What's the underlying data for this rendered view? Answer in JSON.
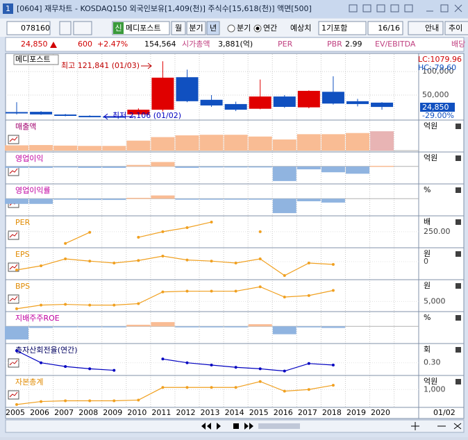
{
  "window": {
    "number": "1",
    "title": "[0604] 재무차트 - KOSDAQ150 외국인보유[1,409(천)] 주식수[15,618(천)] 액면[500]"
  },
  "toolbar": {
    "code": "078160",
    "new_badge": "신",
    "name": "메디포스트",
    "period_buttons": [
      "월",
      "분기",
      "년"
    ],
    "radios": [
      "분기",
      "연간"
    ],
    "estimate_label": "예상치",
    "estimate_select": "1기포함",
    "page": "16/16",
    "buttons": [
      "안내",
      "추이"
    ]
  },
  "quote": {
    "price": "24,850",
    "change": "600",
    "change_pct": "+2.47%",
    "volume": "154,564",
    "market_cap_label": "시가총액",
    "market_cap": "3,881(억)",
    "per_label": "PER",
    "pbr_label": "PBR",
    "pbr": "2.99",
    "ev_label": "EV/EBITDA",
    "dividend_label": "배당"
  },
  "years": [
    "2005",
    "2006",
    "2007",
    "2008",
    "2009",
    "2010",
    "2011",
    "2012",
    "2013",
    "2014",
    "2015",
    "2016",
    "2017",
    "2018",
    "2019",
    "2020"
  ],
  "date_label": "01/02",
  "price_chart": {
    "name": "메디포스트",
    "ylim": [
      -3000,
      134000
    ],
    "ticks": [
      {
        "value": 100000,
        "label": "100,000"
      },
      {
        "value": 50000,
        "label": "50,000"
      }
    ],
    "candles": [
      {
        "open": 14000,
        "high": 35000,
        "low": 9000,
        "close": 13000
      },
      {
        "open": 14500,
        "high": 16000,
        "low": 8000,
        "close": 9000
      },
      {
        "open": 8800,
        "high": 10000,
        "low": 5000,
        "close": 6000
      },
      {
        "open": 6000,
        "high": 7000,
        "low": 3000,
        "close": 5000
      },
      {
        "open": 5000,
        "high": 6000,
        "low": 2106,
        "close": 4000
      },
      {
        "open": 9000,
        "high": 22000,
        "low": 8000,
        "close": 19000
      },
      {
        "open": 19000,
        "high": 121841,
        "low": 15000,
        "close": 87000
      },
      {
        "open": 88000,
        "high": 104000,
        "low": 35000,
        "close": 37000
      },
      {
        "open": 40000,
        "high": 50000,
        "low": 25000,
        "close": 28000
      },
      {
        "open": 31000,
        "high": 36000,
        "low": 16000,
        "close": 19000
      },
      {
        "open": 21000,
        "high": 83000,
        "low": 20000,
        "close": 47000
      },
      {
        "open": 47000,
        "high": 50000,
        "low": 23000,
        "close": 25000
      },
      {
        "open": 24000,
        "high": 60000,
        "low": 22000,
        "close": 59000
      },
      {
        "open": 57000,
        "high": 90000,
        "low": 30000,
        "close": 32000
      },
      {
        "open": 37000,
        "high": 42000,
        "low": 26000,
        "close": 31000
      },
      {
        "open": 34000,
        "high": 35000,
        "low": 19000,
        "close": 24850
      }
    ],
    "high_note": "최고 121,841 (01/03)",
    "low_note": "최저 2,106 (01/02)",
    "lc": "LC:1079.96",
    "hc": "HC:-79.60",
    "last": "24,850",
    "last_pct": "-29.00%"
  },
  "panels": [
    {
      "name": "매출액",
      "unit": "억원",
      "type": "bar",
      "title_color": "#a0006e",
      "ylim": [
        0,
        450
      ],
      "ticks": [],
      "values": [
        90,
        95,
        85,
        80,
        80,
        170,
        230,
        260,
        270,
        270,
        240,
        190,
        280,
        280,
        300,
        330
      ]
    },
    {
      "name": "영업이익",
      "unit": "억원",
      "type": "bar",
      "title_color": "#c000a0",
      "ylim": [
        -55,
        35
      ],
      "ticks": [],
      "values": [
        -5,
        -5,
        -3,
        -5,
        -5,
        5,
        15,
        -5,
        -3,
        -3,
        -3,
        -50,
        -10,
        -20,
        -25,
        2
      ]
    },
    {
      "name": "영업이익률",
      "unit": "%",
      "type": "bar",
      "title_color": "#c000a0",
      "ylim": [
        -60,
        40
      ],
      "ticks": [],
      "values": [
        -20,
        -20,
        -3,
        -5,
        -5,
        3,
        12,
        -2,
        -2,
        -2,
        -2,
        -55,
        -10,
        -15,
        null,
        null
      ]
    },
    {
      "name": "PER",
      "unit": "배",
      "type": "line",
      "title_color": "#e08a00",
      "line_color": "#f0a020",
      "ylim": [
        0,
        450
      ],
      "ticks": [
        {
          "value": 250,
          "label": "250.00"
        }
      ],
      "values": [
        null,
        null,
        50,
        240,
        null,
        155,
        250,
        320,
        415,
        null,
        250,
        null,
        null,
        null,
        null,
        null
      ]
    },
    {
      "name": "EPS",
      "unit": "원",
      "type": "line",
      "title_color": "#e08a00",
      "line_color": "#f0a020",
      "ylim": [
        -600,
        350
      ],
      "ticks": [
        0
      ],
      "values": [
        -300,
        -150,
        100,
        20,
        -50,
        40,
        200,
        60,
        20,
        -50,
        100,
        -500,
        -50,
        -100,
        null,
        null
      ]
    },
    {
      "name": "BPS",
      "unit": "원",
      "type": "line",
      "title_color": "#e08a00",
      "line_color": "#f0a020",
      "ylim": [
        2000,
        11000
      ],
      "ticks": [
        {
          "value": 5000,
          "label": "5,000"
        }
      ],
      "values": [
        2500,
        3750,
        4000,
        3750,
        3750,
        4250,
        8250,
        8500,
        8500,
        8500,
        10000,
        6500,
        7000,
        8750,
        null,
        null
      ]
    },
    {
      "name": "지배주주ROE",
      "unit": "%",
      "type": "bar",
      "title_color": "#c000a0",
      "ylim": [
        -30,
        20
      ],
      "ticks": [],
      "values": [
        -25,
        -3,
        -2,
        -2,
        -2,
        3,
        8,
        -2,
        -2,
        -2,
        4,
        -15,
        -2,
        -3,
        null,
        null
      ]
    },
    {
      "name": "총자산회전율(연간)",
      "unit": "회",
      "type": "line",
      "title_color": "#000060",
      "line_color": "#0000c0",
      "ylim": [
        0.15,
        0.5
      ],
      "ticks": [
        {
          "value": 0.3,
          "label": "0.30"
        }
      ],
      "values": [
        0.46,
        0.3,
        0.25,
        0.22,
        0.2,
        null,
        0.35,
        0.3,
        0.27,
        0.24,
        0.22,
        0.19,
        0.29,
        0.27,
        null,
        null
      ]
    },
    {
      "name": "자본총계",
      "unit": "억원",
      "type": "line",
      "title_color": "#e08a00",
      "line_color": "#f0a020",
      "ylim": [
        0,
        1600
      ],
      "ticks": [
        {
          "value": 1000,
          "label": "1,000"
        }
      ],
      "values": [
        90,
        270,
        315,
        315,
        315,
        360,
        1125,
        1125,
        1125,
        1125,
        1485,
        900,
        1000,
        1260,
        null,
        null
      ]
    }
  ]
}
